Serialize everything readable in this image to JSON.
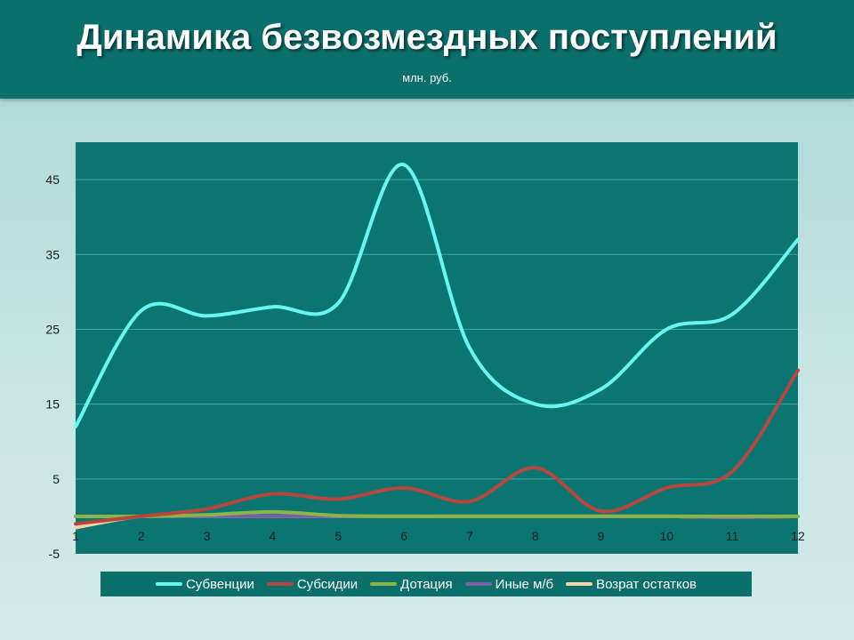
{
  "header": {
    "title": "Динамика безвозмездных поступлений",
    "subtitle": "млн. руб."
  },
  "chart_data": {
    "type": "line",
    "smooth": true,
    "x": [
      1,
      2,
      3,
      4,
      5,
      6,
      7,
      8,
      9,
      10,
      11,
      12
    ],
    "xlim": [
      1,
      12
    ],
    "ylim": [
      -5,
      50
    ],
    "y_ticks": [
      -5,
      5,
      15,
      25,
      35,
      45
    ],
    "grid": true,
    "legend_position": "bottom",
    "background": "#0b7572",
    "series": [
      {
        "name": "Субвенции",
        "color": "#6af6f0",
        "values": [
          12,
          27.5,
          26.8,
          28,
          28.5,
          47,
          22.5,
          15,
          17,
          25,
          27,
          37
        ]
      },
      {
        "name": "Субсидии",
        "color": "#b5473e",
        "values": [
          -1,
          0,
          1,
          3,
          2.3,
          3.8,
          2,
          6.5,
          0.7,
          3.8,
          6,
          19.5
        ]
      },
      {
        "name": "Дотация",
        "color": "#8bb44a",
        "values": [
          0,
          0,
          0.2,
          0.6,
          0.1,
          0,
          0,
          0,
          0,
          0,
          0,
          0
        ]
      },
      {
        "name": "Иные м/б",
        "color": "#7d5fa7",
        "values": [
          0,
          0,
          0,
          0,
          0,
          0,
          0,
          0,
          0,
          0,
          -0.1,
          0
        ]
      },
      {
        "name": "Возрат остатков",
        "color": "#f6d4a3",
        "values": [
          -1.5,
          0,
          0,
          0,
          0,
          0,
          0,
          0,
          0,
          0,
          -0.1,
          0
        ]
      }
    ]
  }
}
